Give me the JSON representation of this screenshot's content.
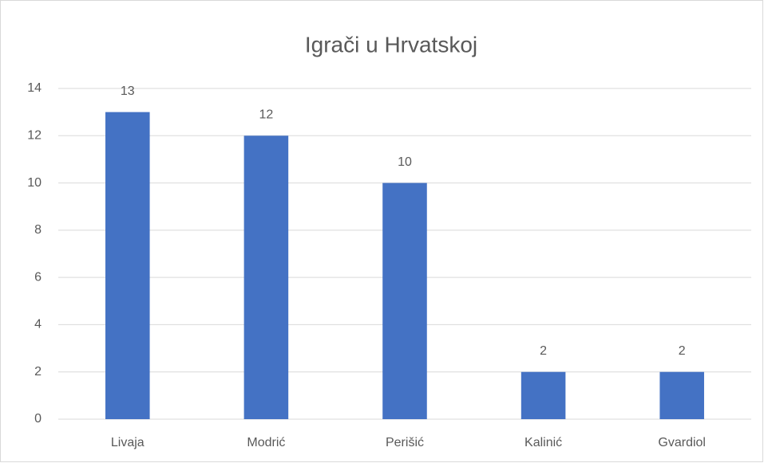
{
  "chart_data": {
    "type": "bar",
    "title": "Igrači u Hrvatskoj",
    "categories": [
      "Livaja",
      "Modrić",
      "Perišić",
      "Kalinić",
      "Gvardiol"
    ],
    "values": [
      13,
      12,
      10,
      2,
      2
    ],
    "color": "#4472c4",
    "ylim": [
      0,
      14
    ],
    "yticks": [
      0,
      2,
      4,
      6,
      8,
      10,
      12,
      14
    ],
    "grid": true
  }
}
